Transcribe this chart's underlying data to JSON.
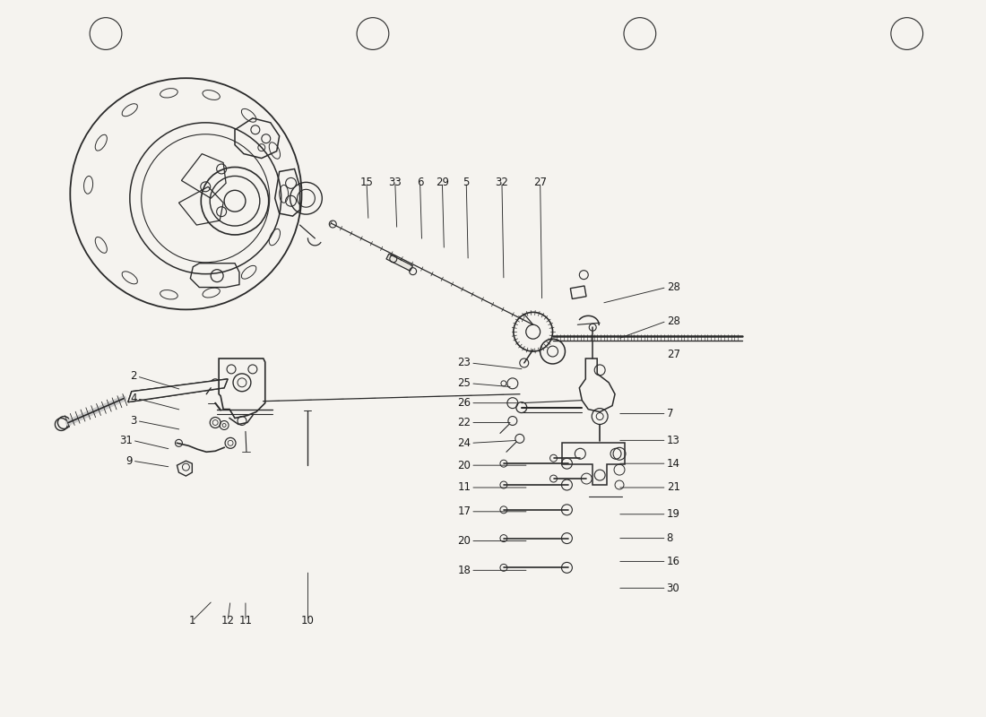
{
  "bg_color": "#f5f3ef",
  "line_color": "#2a2a2a",
  "text_color": "#1a1a1a",
  "fig_width": 11.0,
  "fig_height": 8.0,
  "dpi": 100,
  "leader_lines": [
    [
      "15",
      4.1,
      5.55,
      4.08,
      5.98,
      "center"
    ],
    [
      "33",
      4.42,
      5.45,
      4.4,
      5.98,
      "center"
    ],
    [
      "6",
      4.7,
      5.32,
      4.68,
      5.98,
      "center"
    ],
    [
      "29",
      4.95,
      5.22,
      4.93,
      5.98,
      "center"
    ],
    [
      "5",
      5.22,
      5.1,
      5.2,
      5.98,
      "center"
    ],
    [
      "32",
      5.62,
      4.88,
      5.6,
      5.98,
      "center"
    ],
    [
      "27",
      6.05,
      4.65,
      6.03,
      5.98,
      "center"
    ],
    [
      "28",
      6.72,
      4.62,
      7.45,
      4.8,
      "left"
    ],
    [
      "28",
      6.9,
      4.22,
      7.45,
      4.42,
      "left"
    ],
    [
      "27",
      7.45,
      4.05,
      7.45,
      4.05,
      "left"
    ],
    [
      "23",
      5.85,
      3.88,
      5.25,
      3.95,
      "right"
    ],
    [
      "25",
      5.72,
      3.68,
      5.25,
      3.72,
      "right"
    ],
    [
      "26",
      5.8,
      3.5,
      5.25,
      3.5,
      "right"
    ],
    [
      "22",
      5.72,
      3.28,
      5.25,
      3.28,
      "right"
    ],
    [
      "24",
      5.78,
      3.08,
      5.25,
      3.05,
      "right"
    ],
    [
      "20",
      5.9,
      2.8,
      5.25,
      2.8,
      "right"
    ],
    [
      "11",
      5.9,
      2.55,
      5.25,
      2.55,
      "right"
    ],
    [
      "17",
      5.9,
      2.28,
      5.25,
      2.28,
      "right"
    ],
    [
      "20",
      5.9,
      1.95,
      5.25,
      1.95,
      "right"
    ],
    [
      "18",
      5.9,
      1.62,
      5.25,
      1.62,
      "right"
    ],
    [
      "7",
      6.9,
      3.38,
      7.45,
      3.38,
      "left"
    ],
    [
      "13",
      6.9,
      3.08,
      7.45,
      3.08,
      "left"
    ],
    [
      "14",
      6.9,
      2.82,
      7.45,
      2.82,
      "left"
    ],
    [
      "21",
      6.9,
      2.55,
      7.45,
      2.55,
      "left"
    ],
    [
      "19",
      6.9,
      2.25,
      7.45,
      2.25,
      "left"
    ],
    [
      "8",
      6.9,
      1.98,
      7.45,
      1.98,
      "left"
    ],
    [
      "16",
      6.9,
      1.72,
      7.45,
      1.72,
      "left"
    ],
    [
      "30",
      6.9,
      1.42,
      7.45,
      1.42,
      "left"
    ],
    [
      "2",
      2.0,
      3.65,
      1.5,
      3.8,
      "right"
    ],
    [
      "4",
      2.0,
      3.42,
      1.5,
      3.55,
      "right"
    ],
    [
      "3",
      2.0,
      3.2,
      1.5,
      3.3,
      "right"
    ],
    [
      "31",
      1.88,
      2.98,
      1.45,
      3.08,
      "right"
    ],
    [
      "9",
      1.88,
      2.78,
      1.45,
      2.85,
      "right"
    ],
    [
      "1",
      2.35,
      1.28,
      2.12,
      1.05,
      "center"
    ],
    [
      "12",
      2.55,
      1.28,
      2.52,
      1.05,
      "center"
    ],
    [
      "11",
      2.72,
      1.28,
      2.72,
      1.05,
      "center"
    ],
    [
      "10",
      3.42,
      1.62,
      3.42,
      1.05,
      "center"
    ]
  ]
}
